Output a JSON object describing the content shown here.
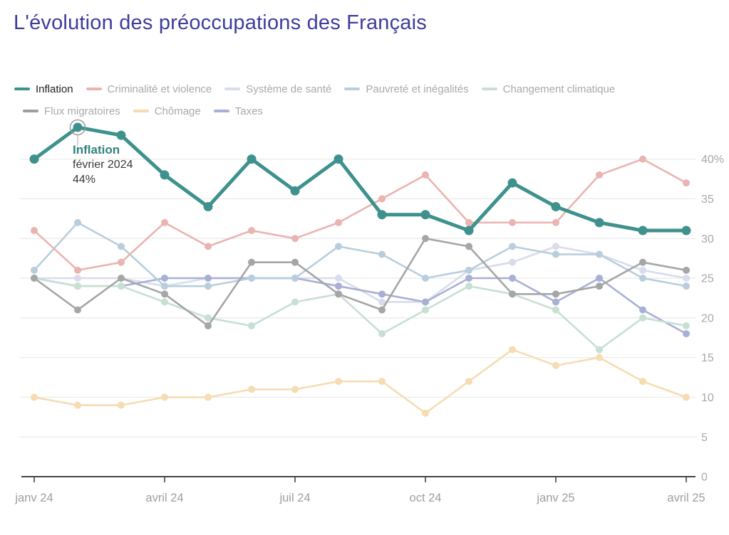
{
  "page": {
    "title": "L'évolution des préoccupations des Français"
  },
  "legend": {
    "items": [
      {
        "label": "Inflation",
        "color": "#3e918d",
        "active": true
      },
      {
        "label": "Criminalité et violence",
        "color": "#eab4b0",
        "active": false
      },
      {
        "label": "Système de santé",
        "color": "#d9dcec",
        "active": false
      },
      {
        "label": "Pauvreté et inégalités",
        "color": "#b9cedd",
        "active": false
      },
      {
        "label": "Changement climatique",
        "color": "#c8dfd4",
        "active": false
      },
      {
        "label": "Flux migratoires",
        "color": "#9e9e9e",
        "active": false
      },
      {
        "label": "Chômage",
        "color": "#f6dcb2",
        "active": false
      },
      {
        "label": "Taxes",
        "color": "#a9b0d5",
        "active": false
      }
    ]
  },
  "tooltip": {
    "series": "Inflation",
    "date": "février 2024",
    "value": "44%"
  },
  "chart_data": {
    "type": "line",
    "title": "L'évolution des préoccupations des Français",
    "xlabel": "",
    "ylabel": "",
    "x": [
      "janv 24",
      "févr 24",
      "mars 24",
      "avril 24",
      "mai 24",
      "juin 24",
      "juil 24",
      "août 24",
      "sept 24",
      "oct 24",
      "nov 24",
      "déc 24",
      "janv 25",
      "févr 25",
      "mars 25",
      "avril 25"
    ],
    "x_ticks": [
      [
        0,
        "janv 24"
      ],
      [
        3,
        "avril 24"
      ],
      [
        6,
        "juil 24"
      ],
      [
        9,
        "oct 24"
      ],
      [
        12,
        "janv 25"
      ],
      [
        15,
        "avril 25"
      ]
    ],
    "y_ticks": [
      [
        40,
        "40%"
      ],
      [
        35,
        "35"
      ],
      [
        30,
        "30"
      ],
      [
        25,
        "25"
      ],
      [
        20,
        "20"
      ],
      [
        15,
        "15"
      ],
      [
        10,
        "10"
      ],
      [
        5,
        "5"
      ],
      [
        0,
        "0"
      ]
    ],
    "ylim": [
      0,
      46
    ],
    "grid": "horizontal",
    "legend_position": "top",
    "highlight": {
      "series": "Inflation",
      "x": "févr 24",
      "x_index": 1,
      "value": 44
    },
    "series": [
      {
        "name": "Inflation",
        "color": "#3e918d",
        "emphasis": true,
        "values": [
          40,
          44,
          43,
          38,
          34,
          40,
          36,
          40,
          33,
          33,
          31,
          37,
          34,
          32,
          31,
          31
        ]
      },
      {
        "name": "Criminalité et violence",
        "color": "#eab4b0",
        "emphasis": false,
        "values": [
          31,
          26,
          27,
          32,
          29,
          31,
          30,
          32,
          35,
          38,
          32,
          32,
          32,
          38,
          40,
          37
        ]
      },
      {
        "name": "Système de santé",
        "color": "#d9dcec",
        "emphasis": false,
        "values": [
          25,
          25,
          25,
          24,
          25,
          25,
          25,
          25,
          22,
          22,
          26,
          27,
          29,
          28,
          26,
          25
        ]
      },
      {
        "name": "Pauvreté et inégalités",
        "color": "#b9cedd",
        "emphasis": false,
        "values": [
          26,
          32,
          29,
          24,
          24,
          25,
          25,
          29,
          28,
          25,
          26,
          29,
          28,
          28,
          25,
          24
        ]
      },
      {
        "name": "Changement climatique",
        "color": "#c8dfd4",
        "emphasis": false,
        "values": [
          25,
          24,
          24,
          22,
          20,
          19,
          22,
          23,
          18,
          21,
          24,
          23,
          21,
          16,
          20,
          19
        ]
      },
      {
        "name": "Flux migratoires",
        "color": "#a6a6a6",
        "emphasis": false,
        "values": [
          25,
          21,
          25,
          23,
          19,
          27,
          27,
          23,
          21,
          30,
          29,
          23,
          23,
          24,
          27,
          26
        ]
      },
      {
        "name": "Chômage",
        "color": "#f6dcb2",
        "emphasis": false,
        "values": [
          10,
          9,
          9,
          10,
          10,
          11,
          11,
          12,
          12,
          8,
          12,
          16,
          14,
          15,
          12,
          10
        ]
      },
      {
        "name": "Taxes",
        "color": "#a9b0d5",
        "emphasis": false,
        "values": [
          25,
          24,
          24,
          25,
          25,
          25,
          25,
          24,
          23,
          22,
          25,
          25,
          22,
          25,
          21,
          18
        ]
      }
    ],
    "draw_order": [
      2,
      7,
      6,
      4,
      3,
      1,
      5,
      0
    ]
  }
}
